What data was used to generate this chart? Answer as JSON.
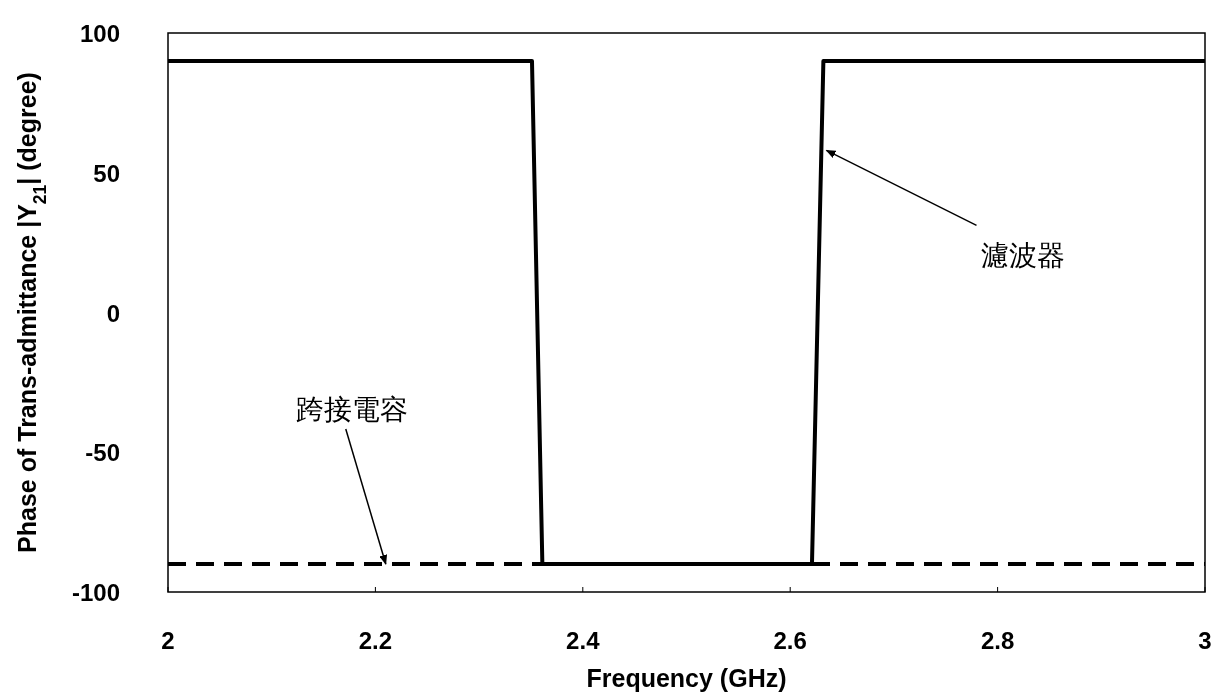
{
  "chart_data": {
    "type": "line",
    "xlabel": "Frequency (GHz)",
    "ylabel": "Phase of Trans-admittance |Y$_{21}$| (degree)",
    "xlim": [
      2,
      3
    ],
    "xticks": [
      2,
      2.2,
      2.4,
      2.6,
      2.8,
      3
    ],
    "ylim": [
      -100,
      100
    ],
    "yticks": [
      -100,
      -50,
      0,
      50,
      100
    ],
    "grid": false,
    "series": [
      {
        "color": "#000000",
        "line_style": "dashed",
        "x": [
          2,
          3
        ],
        "values": [
          -90,
          -90
        ]
      },
      {
        "color": "#000000",
        "line_style": "solid",
        "x": [
          2,
          2.351,
          2.361,
          2.621,
          2.632,
          3
        ],
        "values": [
          90,
          90,
          -90,
          -90,
          90,
          90
        ]
      }
    ],
    "annotations": [
      {
        "text": "濾波器",
        "x": 2.635,
        "y": 58
      },
      {
        "text": "跨接電容",
        "x": 2.21,
        "y": -90
      }
    ]
  }
}
